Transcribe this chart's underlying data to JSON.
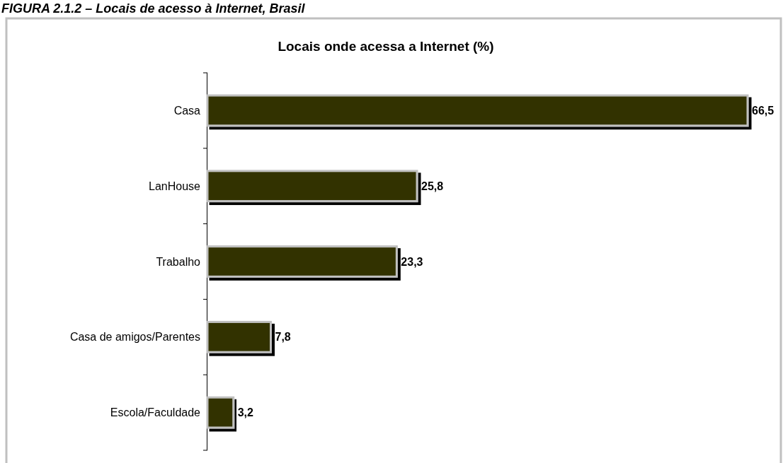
{
  "chart_data": {
    "type": "bar",
    "orientation": "horizontal",
    "title": "FIGURA 2.1.2 – Locais de acesso à Internet, Brasil",
    "subtitle": "Locais onde acessa a Internet (%)",
    "categories": [
      "Casa",
      "LanHouse",
      "Trabalho",
      "Casa de amigos/Parentes",
      "Escola/Faculdade"
    ],
    "values": [
      66.5,
      25.8,
      23.3,
      7.8,
      3.2
    ],
    "value_labels": [
      "66,5",
      "25,8",
      "23,3",
      "7,8",
      "3,2"
    ],
    "color": "#333300",
    "tick_labels": "y"
  }
}
